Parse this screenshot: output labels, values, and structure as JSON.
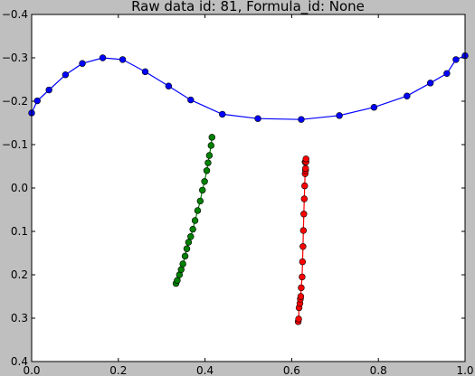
{
  "chart_data": {
    "type": "line",
    "title": "Raw data id: 81, Formula_id: None",
    "xlabel": "",
    "ylabel": "",
    "xlim": [
      0.0,
      1.0
    ],
    "ylim": [
      0.4,
      -0.4
    ],
    "y_inverted": true,
    "x_ticks": [
      "0.0",
      "0.2",
      "0.4",
      "0.6",
      "0.8",
      "1.0"
    ],
    "y_ticks": [
      "−0.4",
      "−0.3",
      "−0.2",
      "−0.1",
      "0.0",
      "0.1",
      "0.2",
      "0.3",
      "0.4"
    ],
    "grid": false,
    "legend": "none",
    "series": [
      {
        "color": "#0000ff",
        "marker": "circle",
        "x": [
          0.0,
          0.013,
          0.04,
          0.078,
          0.117,
          0.164,
          0.21,
          0.262,
          0.316,
          0.367,
          0.44,
          0.522,
          0.622,
          0.71,
          0.79,
          0.866,
          0.92,
          0.958,
          0.979,
          1.0
        ],
        "y": [
          -0.173,
          -0.201,
          -0.226,
          -0.261,
          -0.287,
          -0.3,
          -0.296,
          -0.268,
          -0.235,
          -0.203,
          -0.17,
          -0.16,
          -0.158,
          -0.167,
          -0.186,
          -0.212,
          -0.242,
          -0.264,
          -0.296,
          -0.305
        ]
      },
      {
        "color": "#008000",
        "marker": "circle",
        "x": [
          0.333,
          0.336,
          0.341,
          0.345,
          0.349,
          0.354,
          0.358,
          0.362,
          0.367,
          0.372,
          0.377,
          0.383,
          0.389,
          0.394,
          0.399,
          0.404,
          0.407,
          0.41,
          0.414,
          0.416
        ],
        "y": [
          0.22,
          0.213,
          0.2,
          0.188,
          0.175,
          0.157,
          0.14,
          0.125,
          0.112,
          0.095,
          0.075,
          0.052,
          0.03,
          0.005,
          -0.015,
          -0.04,
          -0.058,
          -0.075,
          -0.098,
          -0.117
        ]
      },
      {
        "color": "#ff0000",
        "marker": "circle",
        "x": [
          0.615,
          0.616,
          0.617,
          0.619,
          0.62,
          0.621,
          0.622,
          0.624,
          0.625,
          0.626,
          0.627,
          0.628,
          0.629,
          0.63,
          0.631,
          0.631,
          0.632,
          0.632,
          0.633,
          0.633
        ],
        "y": [
          0.308,
          0.302,
          0.276,
          0.266,
          0.256,
          0.25,
          0.23,
          0.205,
          0.17,
          0.135,
          0.098,
          0.06,
          0.025,
          -0.005,
          -0.033,
          -0.06,
          -0.04,
          -0.045,
          -0.06,
          -0.067
        ]
      }
    ]
  }
}
